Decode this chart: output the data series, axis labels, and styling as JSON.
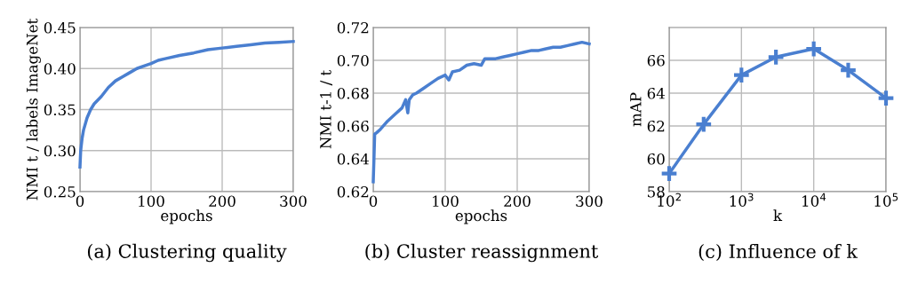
{
  "chart_data": [
    {
      "type": "line",
      "title": "(a) Clustering quality",
      "xlabel": "epochs",
      "ylabel": "NMI t / labels ImageNet",
      "xlim": [
        0,
        300
      ],
      "xticks": [
        0,
        100,
        200,
        300
      ],
      "ylim": [
        0.25,
        0.45
      ],
      "yticks": [
        0.25,
        {
          "value": 0.3,
          "label": "0.30"
        },
        0.35,
        {
          "value": 0.4,
          "label": "0.40"
        },
        0.45
      ],
      "grid": true,
      "series": [
        {
          "color": "#4a7fd0",
          "x": [
            0,
            1,
            3,
            5,
            10,
            15,
            20,
            30,
            40,
            50,
            60,
            70,
            80,
            90,
            100,
            110,
            120,
            140,
            160,
            180,
            200,
            220,
            240,
            260,
            280,
            300
          ],
          "values": [
            0.28,
            0.3,
            0.315,
            0.325,
            0.34,
            0.35,
            0.357,
            0.366,
            0.377,
            0.385,
            0.39,
            0.395,
            0.4,
            0.403,
            0.406,
            0.41,
            0.412,
            0.416,
            0.419,
            0.423,
            0.425,
            0.427,
            0.429,
            0.431,
            0.432,
            0.433
          ]
        }
      ]
    },
    {
      "type": "line",
      "title": "(b) Cluster reassignment",
      "xlabel": "epochs",
      "ylabel": "NMI t-1 / t",
      "xlim": [
        0,
        300
      ],
      "xticks": [
        0,
        100,
        200,
        300
      ],
      "ylim": [
        0.62,
        0.72
      ],
      "yticks": [
        0.62,
        0.64,
        0.66,
        0.68,
        {
          "value": 0.7,
          "label": "0.70"
        },
        0.72
      ],
      "grid": true,
      "series": [
        {
          "color": "#4a7fd0",
          "x": [
            0,
            1,
            2,
            5,
            10,
            20,
            30,
            40,
            45,
            48,
            50,
            55,
            60,
            70,
            80,
            90,
            100,
            105,
            110,
            120,
            130,
            140,
            150,
            155,
            160,
            170,
            180,
            190,
            200,
            210,
            220,
            230,
            240,
            250,
            260,
            270,
            280,
            290,
            300
          ],
          "values": [
            0.626,
            0.64,
            0.655,
            0.656,
            0.658,
            0.663,
            0.667,
            0.671,
            0.676,
            0.668,
            0.676,
            0.679,
            0.68,
            0.683,
            0.686,
            0.689,
            0.691,
            0.688,
            0.693,
            0.694,
            0.697,
            0.698,
            0.697,
            0.701,
            0.701,
            0.701,
            0.702,
            0.703,
            0.704,
            0.705,
            0.706,
            0.706,
            0.707,
            0.708,
            0.708,
            0.709,
            0.71,
            0.711,
            0.71
          ]
        }
      ]
    },
    {
      "type": "line",
      "title": "(c) Influence of k",
      "xlabel": "k",
      "ylabel": "mAP",
      "log": "x",
      "marker": "cross",
      "xlim": [
        100,
        100000
      ],
      "xticks": [
        {
          "value": 100,
          "label": "10$^{2}$"
        },
        {
          "value": 1000,
          "label": "10$^{3}$"
        },
        {
          "value": 10000,
          "label": "10$^{4}$"
        },
        {
          "value": 100000,
          "label": "10$^{5}$"
        }
      ],
      "ylim": [
        58,
        68
      ],
      "yticks": [
        58,
        60,
        62,
        64,
        66
      ],
      "grid": true,
      "series": [
        {
          "color": "#4a7fd0",
          "x": [
            100,
            300,
            1000,
            3000,
            10000,
            30000,
            100000
          ],
          "values": [
            59.1,
            62.1,
            65.1,
            66.2,
            66.7,
            65.4,
            63.7
          ]
        }
      ]
    }
  ]
}
